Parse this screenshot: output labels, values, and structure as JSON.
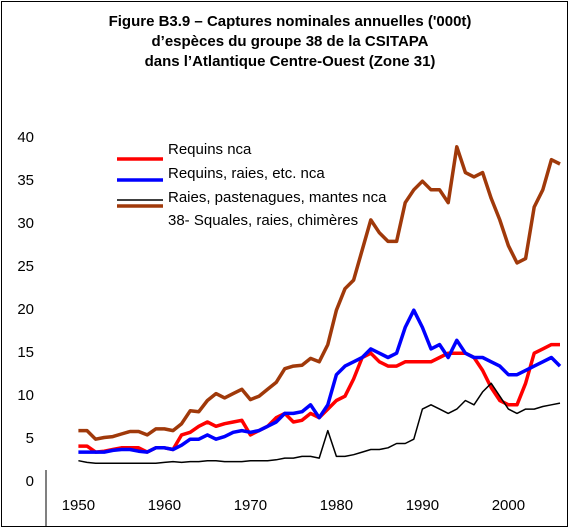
{
  "chart_data": {
    "type": "line",
    "title": [
      "Figure B3.9 – Captures nominales annuelles ('000t)",
      "d’espèces du groupe 38 de la CSITAPA",
      "dans l’Atlantique Centre-Ouest (Zone 31)"
    ],
    "x": [
      1950,
      1951,
      1952,
      1953,
      1954,
      1955,
      1956,
      1957,
      1958,
      1959,
      1960,
      1961,
      1962,
      1963,
      1964,
      1965,
      1966,
      1967,
      1968,
      1969,
      1970,
      1971,
      1972,
      1973,
      1974,
      1975,
      1976,
      1977,
      1978,
      1979,
      1980,
      1981,
      1982,
      1983,
      1984,
      1985,
      1986,
      1987,
      1988,
      1989,
      1990,
      1991,
      1992,
      1993,
      1994,
      1995,
      1996,
      1997,
      1998,
      1999,
      2000,
      2001,
      2002,
      2003,
      2004,
      2005,
      2006
    ],
    "series": [
      {
        "name": "Requins nca",
        "color": "#ff0000",
        "values": [
          2.2,
          2.2,
          1.5,
          1.6,
          1.8,
          2.0,
          2.0,
          2.0,
          1.5,
          2.0,
          2.0,
          1.8,
          3.5,
          3.8,
          4.5,
          5.0,
          4.5,
          4.8,
          5.0,
          5.2,
          3.5,
          4.0,
          4.5,
          5.5,
          6.0,
          5.0,
          5.2,
          6.0,
          5.5,
          6.5,
          7.5,
          8.0,
          10.0,
          12.5,
          13.0,
          12.0,
          11.5,
          11.5,
          12.0,
          12.0,
          12.0,
          12.0,
          12.5,
          13.0,
          13.0,
          13.0,
          12.5,
          11.0,
          9.0,
          7.5,
          7.0,
          7.0,
          9.5,
          13.0,
          13.5,
          14.0,
          14.0
        ]
      },
      {
        "name": "Requins, raies, etc. nca",
        "color": "#0000ff",
        "values": [
          1.5,
          1.5,
          1.5,
          1.5,
          1.7,
          1.8,
          1.8,
          1.6,
          1.5,
          2.0,
          2.0,
          1.8,
          2.3,
          3.0,
          3.0,
          3.5,
          3.0,
          3.3,
          3.8,
          4.0,
          3.8,
          4.0,
          4.5,
          5.0,
          6.0,
          6.0,
          6.2,
          7.0,
          5.5,
          7.0,
          10.5,
          11.5,
          12.0,
          12.5,
          13.5,
          13.0,
          12.5,
          13.0,
          16.0,
          18.0,
          16.0,
          13.5,
          14.0,
          12.5,
          14.5,
          13.0,
          12.5,
          12.5,
          12.0,
          11.5,
          10.5,
          10.5,
          11.0,
          11.5,
          12.0,
          12.5,
          11.5
        ]
      },
      {
        "name": "Raies, pastenagues, mantes nca",
        "color": "#000000",
        "values": [
          0.5,
          0.3,
          0.2,
          0.2,
          0.2,
          0.2,
          0.2,
          0.2,
          0.2,
          0.2,
          0.3,
          0.4,
          0.3,
          0.4,
          0.4,
          0.5,
          0.5,
          0.4,
          0.4,
          0.4,
          0.5,
          0.5,
          0.5,
          0.6,
          0.8,
          0.8,
          1.0,
          1.0,
          0.8,
          4.0,
          1.0,
          1.0,
          1.2,
          1.5,
          1.8,
          1.8,
          2.0,
          2.5,
          2.5,
          3.0,
          6.5,
          7.0,
          6.5,
          6.0,
          6.5,
          7.5,
          7.0,
          8.5,
          9.5,
          8.0,
          6.5,
          6.0,
          6.5,
          6.5,
          6.8,
          7.0,
          7.2
        ]
      },
      {
        "name": "38- Squales, raies, chimères",
        "color": "#a0390a",
        "values": [
          4.0,
          4.0,
          3.0,
          3.2,
          3.3,
          3.6,
          3.9,
          3.9,
          3.5,
          4.2,
          4.2,
          4.0,
          4.8,
          6.3,
          6.2,
          7.5,
          8.3,
          7.8,
          8.3,
          8.8,
          7.6,
          8.0,
          8.8,
          9.6,
          11.2,
          11.5,
          11.6,
          12.4,
          12.0,
          14.0,
          18.0,
          20.5,
          21.5,
          25.0,
          28.5,
          27.0,
          26.0,
          26.0,
          30.5,
          32.0,
          33.0,
          32.0,
          32.0,
          30.5,
          37.0,
          34.0,
          33.5,
          34.0,
          31.0,
          28.5,
          25.5,
          23.5,
          24.0,
          30.0,
          32.0,
          35.5,
          35.0
        ]
      }
    ],
    "xlim": [
      1946,
      2006
    ],
    "xticks": [
      1950,
      1960,
      1970,
      1980,
      1990,
      2000
    ],
    "ylim": [
      0,
      40
    ],
    "yticks": [
      0,
      5,
      10,
      15,
      20,
      25,
      30,
      35,
      40
    ]
  }
}
